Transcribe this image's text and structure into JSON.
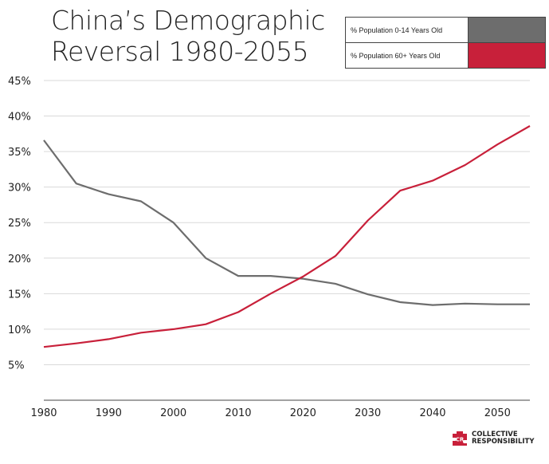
{
  "chart_data": {
    "type": "line",
    "title": "China’s Demographic Reversal 1980-2055",
    "title_lines": [
      "China’s Demographic",
      "Reversal 1980-2055"
    ],
    "xlabel": "",
    "ylabel": "",
    "xlim": [
      1980,
      2055
    ],
    "ylim": [
      0,
      45
    ],
    "grid": true,
    "legend_position": "top-right",
    "x_ticks": [
      1980,
      1990,
      2000,
      2010,
      2020,
      2030,
      2040,
      2050
    ],
    "x_tick_labels": [
      "1980",
      "1990",
      "2000",
      "2010",
      "2020",
      "2030",
      "2040",
      "2050"
    ],
    "y_ticks": [
      5,
      10,
      15,
      20,
      25,
      30,
      35,
      40,
      45
    ],
    "y_tick_labels": [
      "5%",
      "10%",
      "15%",
      "20%",
      "25%",
      "30%",
      "35%",
      "40%",
      "45%"
    ],
    "x": [
      1980,
      1985,
      1990,
      1995,
      2000,
      2005,
      2010,
      2015,
      2020,
      2025,
      2030,
      2035,
      2040,
      2045,
      2050,
      2055
    ],
    "series": [
      {
        "name": "% Population 0-14 Years Old",
        "color": "#6d6d6d",
        "values": [
          36.6,
          30.5,
          29.0,
          28.0,
          25.0,
          20.0,
          17.5,
          17.5,
          17.1,
          16.4,
          14.9,
          13.8,
          13.4,
          13.6,
          13.5,
          13.5
        ]
      },
      {
        "name": "% Population 60+ Years Old",
        "color": "#c8203a",
        "values": [
          7.5,
          8.0,
          8.6,
          9.5,
          10.0,
          10.7,
          12.4,
          15.0,
          17.4,
          20.3,
          25.3,
          29.5,
          30.9,
          33.1,
          36.0,
          38.6
        ]
      }
    ]
  },
  "logo": {
    "badge": "CR",
    "line1": "COLLECTIVE",
    "line2": "RESPONSIBILITY",
    "color": "#c8203a"
  }
}
